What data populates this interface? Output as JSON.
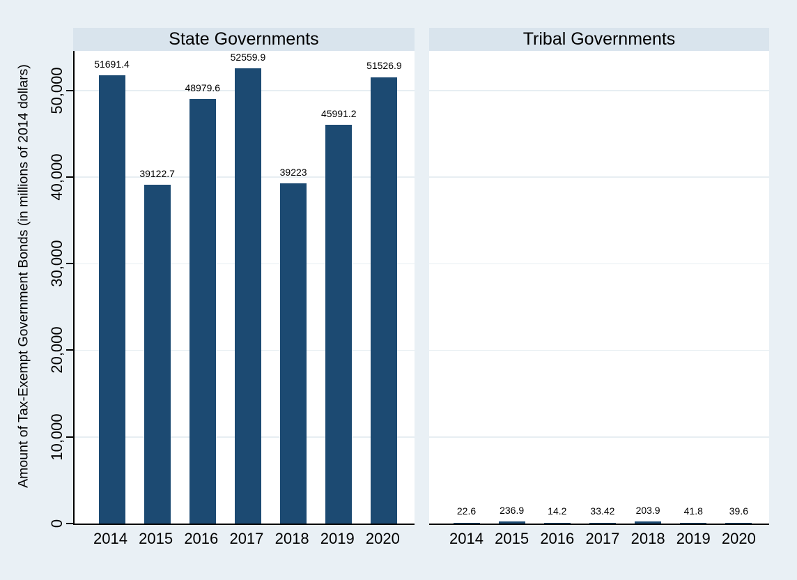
{
  "figure": {
    "colors": {
      "background": "#e9f0f5",
      "title_band": "#d9e4ed",
      "bar": "#1c4a72",
      "gridline": "#e7eef2",
      "axis": "#000000",
      "plot_background": "#ffffff",
      "text": "#000000"
    }
  },
  "chart_data": {
    "type": "bar",
    "layout": "two side-by-side panels sharing one y axis (graph-by style), value labels above bars, no legend",
    "title": "",
    "xlabel": "",
    "ylabel": "Amount of Tax-Exempt Government Bonds (in millions of 2014 dollars)",
    "categories": [
      "2014",
      "2015",
      "2016",
      "2017",
      "2018",
      "2019",
      "2020"
    ],
    "series": [
      {
        "name": "State Governments",
        "values": [
          51691.4,
          39122.7,
          48979.6,
          52559.9,
          39223,
          45991.2,
          51526.9
        ],
        "value_labels": [
          "51691.4",
          "39122.7",
          "48979.6",
          "52559.9",
          "39223",
          "45991.2",
          "51526.9"
        ]
      },
      {
        "name": "Tribal Governments",
        "values": [
          22.6,
          236.9,
          14.2,
          33.42,
          203.9,
          41.8,
          39.6
        ],
        "value_labels": [
          "22.6",
          "236.9",
          "14.2",
          "33.42",
          "203.9",
          "41.8",
          "39.6"
        ]
      }
    ],
    "ylim": [
      0,
      54600
    ],
    "yticks": [
      {
        "value": 0,
        "label": "0"
      },
      {
        "value": 10000,
        "label": "10,000"
      },
      {
        "value": 20000,
        "label": "20,000"
      },
      {
        "value": 30000,
        "label": "30,000"
      },
      {
        "value": 40000,
        "label": "40,000"
      },
      {
        "value": 50000,
        "label": "50,000"
      }
    ],
    "grid": true,
    "legend": "none"
  }
}
